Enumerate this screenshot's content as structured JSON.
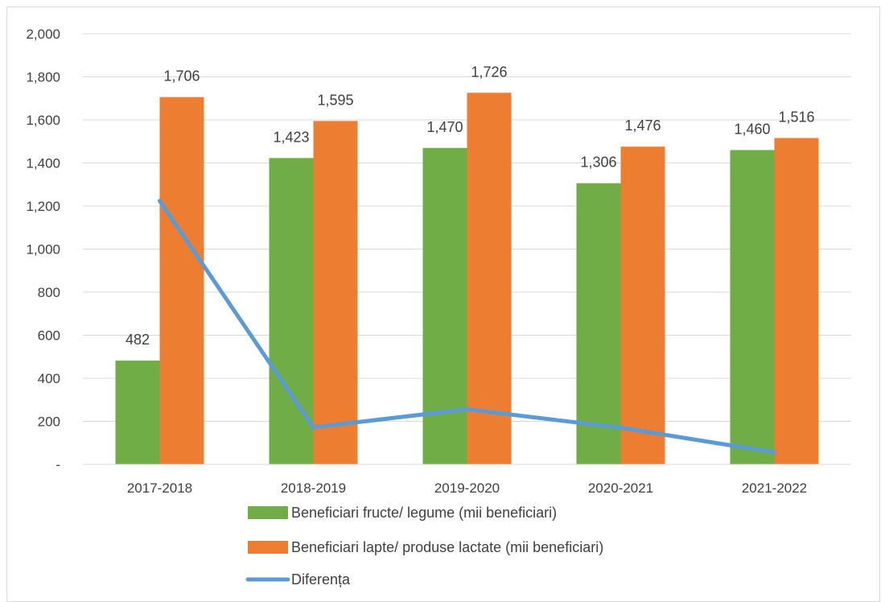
{
  "chart_data": {
    "type": "bar",
    "categories": [
      "2017-2018",
      "2018-2019",
      "2019-2020",
      "2020-2021",
      "2021-2022"
    ],
    "series": [
      {
        "name": "Beneficiari fructe/ legume (mii beneficiari)",
        "type": "bar",
        "color": "#70ad47",
        "values": [
          482,
          1423,
          1470,
          1306,
          1460
        ],
        "labels": [
          "482",
          "1,423",
          "1,470",
          "1,306",
          "1,460"
        ]
      },
      {
        "name": "Beneficiari lapte/ produse lactate (mii beneficiari)",
        "type": "bar",
        "color": "#ed7d31",
        "values": [
          1706,
          1595,
          1726,
          1476,
          1516
        ],
        "labels": [
          "1,706",
          "1,595",
          "1,726",
          "1,476",
          "1,516"
        ]
      },
      {
        "name": "Diferența",
        "type": "line",
        "color": "#5b9bd5",
        "values": [
          1224,
          172,
          256,
          170,
          56
        ]
      }
    ],
    "ylim": [
      0,
      2000
    ],
    "yticks": [
      {
        "value": 0,
        "label": "-"
      },
      {
        "value": 200,
        "label": "200"
      },
      {
        "value": 400,
        "label": "400"
      },
      {
        "value": 600,
        "label": "600"
      },
      {
        "value": 800,
        "label": "800"
      },
      {
        "value": 1000,
        "label": "1,000"
      },
      {
        "value": 1200,
        "label": "1,200"
      },
      {
        "value": 1400,
        "label": "1,400"
      },
      {
        "value": 1600,
        "label": "1,600"
      },
      {
        "value": 1800,
        "label": "1,800"
      },
      {
        "value": 2000,
        "label": "2,000"
      }
    ],
    "grid": true,
    "legend_position": "bottom"
  }
}
